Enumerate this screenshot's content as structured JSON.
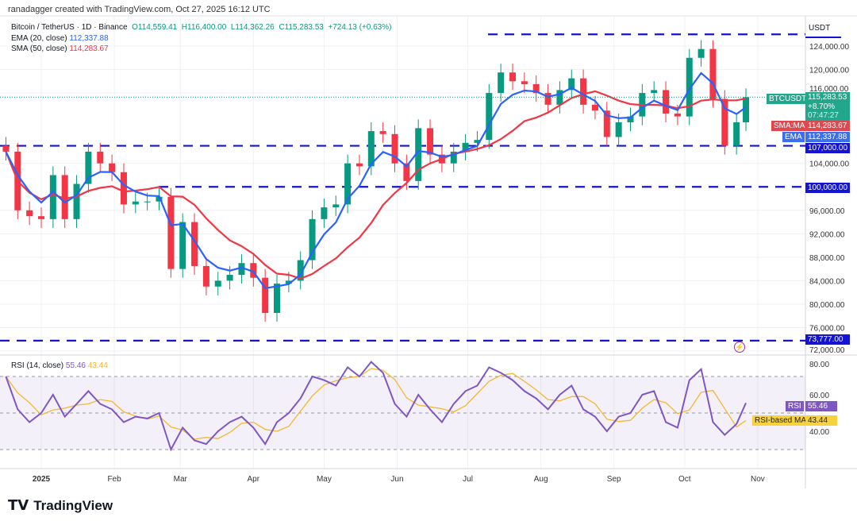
{
  "credit": "ranadagger created with TradingView.com, Oct 27, 2025 16:12 UTC",
  "legend": {
    "symbol": "Bitcoin / TetherUS · 1D · Binance",
    "o": "O114,559.41",
    "h": "H116,400.00",
    "l": "L114,362.26",
    "c": "C115,283.53",
    "chg": "+724.13 (+0.63%)",
    "ema_label": "EMA (20, close)",
    "ema_value": "112,337.88",
    "sma_label": "SMA (50, close)",
    "sma_value": "114,283.67"
  },
  "rsi_legend": {
    "label": "RSI (14, close)",
    "rsi": "55.46",
    "ma": "43.44"
  },
  "axis": {
    "currency": "USDT",
    "price_ticks": [
      "124,000.00",
      "120,000.00",
      "116,000.00",
      "104,000.00",
      "96,000.00",
      "92,000.00",
      "88,000.00",
      "84,000.00",
      "80,000.00",
      "76,000.00",
      "72,000.00"
    ],
    "rsi_ticks": [
      "80.00",
      "60.00",
      "40.00"
    ],
    "time_ticks": [
      "2025",
      "Feb",
      "Mar",
      "Apr",
      "May",
      "Jun",
      "Jul",
      "Aug",
      "Sep",
      "Oct",
      "Nov"
    ]
  },
  "tags": {
    "symbol": "BTCUSDT",
    "price": "115,283.53",
    "pct": "+8.70%",
    "countdown": "07:47:27",
    "sma_name": "SMA:MA",
    "sma": "114,283.67",
    "ema_name": "EMA",
    "ema": "112,337.88",
    "level_107": "107,000.00",
    "level_100": "100,000.00",
    "level_73": "73,777.00",
    "rsi_name": "RSI",
    "rsi": "55.46",
    "rsima_name": "RSI-based MA",
    "rsima": "43.44"
  },
  "colors": {
    "up": "#089981",
    "down": "#f23645",
    "ema": "#2962ff",
    "sma": "#f23645",
    "levels": "#1414d4",
    "rsi": "#7e57c2",
    "rsi_ma": "#f5b82e"
  },
  "logo": "TradingView",
  "chart_data": {
    "type": "candlestick",
    "title": "Bitcoin / TetherUS · 1D · Binance",
    "ylim": [
      72000,
      126000
    ],
    "levels": [
      126000,
      107000,
      100000,
      73777
    ],
    "dates": [
      "2024-12-17",
      "2024-12-22",
      "2024-12-27",
      "2025-01-01",
      "2025-01-06",
      "2025-01-11",
      "2025-01-16",
      "2025-01-21",
      "2025-01-26",
      "2025-01-31",
      "2025-02-05",
      "2025-02-10",
      "2025-02-15",
      "2025-02-20",
      "2025-02-25",
      "2025-03-02",
      "2025-03-07",
      "2025-03-12",
      "2025-03-17",
      "2025-03-22",
      "2025-03-27",
      "2025-04-01",
      "2025-04-06",
      "2025-04-11",
      "2025-04-16",
      "2025-04-21",
      "2025-04-26",
      "2025-05-01",
      "2025-05-06",
      "2025-05-11",
      "2025-05-16",
      "2025-05-21",
      "2025-05-26",
      "2025-05-31",
      "2025-06-05",
      "2025-06-10",
      "2025-06-15",
      "2025-06-20",
      "2025-06-25",
      "2025-06-30",
      "2025-07-05",
      "2025-07-10",
      "2025-07-15",
      "2025-07-20",
      "2025-07-25",
      "2025-07-30",
      "2025-08-04",
      "2025-08-09",
      "2025-08-14",
      "2025-08-19",
      "2025-08-24",
      "2025-08-29",
      "2025-09-03",
      "2025-09-08",
      "2025-09-13",
      "2025-09-18",
      "2025-09-23",
      "2025-09-28",
      "2025-10-03",
      "2025-10-08",
      "2025-10-13",
      "2025-10-18",
      "2025-10-23",
      "2025-10-27"
    ],
    "close": [
      106000,
      96000,
      95000,
      94500,
      102000,
      94500,
      100500,
      106000,
      104000,
      102500,
      97000,
      97500,
      97500,
      98300,
      86000,
      94000,
      86500,
      83000,
      84000,
      85000,
      87000,
      84500,
      78500,
      83500,
      84000,
      87500,
      94500,
      96500,
      97000,
      104000,
      103500,
      109500,
      109000,
      104000,
      101000,
      110000,
      105500,
      104000,
      106000,
      107500,
      108000,
      116000,
      119500,
      118000,
      117500,
      116000,
      114000,
      116500,
      118500,
      114000,
      113000,
      108500,
      111000,
      112000,
      116000,
      116500,
      112500,
      112000,
      122000,
      123500,
      115000,
      107000,
      111000,
      115283.53
    ],
    "rsi": [
      70,
      52,
      45,
      50,
      60,
      48,
      55,
      62,
      55,
      52,
      45,
      48,
      47,
      50,
      30,
      42,
      35,
      33,
      40,
      45,
      48,
      42,
      33,
      45,
      50,
      58,
      70,
      68,
      65,
      75,
      70,
      78,
      72,
      55,
      48,
      60,
      52,
      45,
      55,
      62,
      65,
      75,
      72,
      68,
      62,
      58,
      52,
      60,
      65,
      52,
      48,
      40,
      48,
      50,
      60,
      62,
      45,
      42,
      68,
      74,
      45,
      38,
      44,
      55.46
    ],
    "rsi_ylim": [
      20,
      80
    ]
  }
}
